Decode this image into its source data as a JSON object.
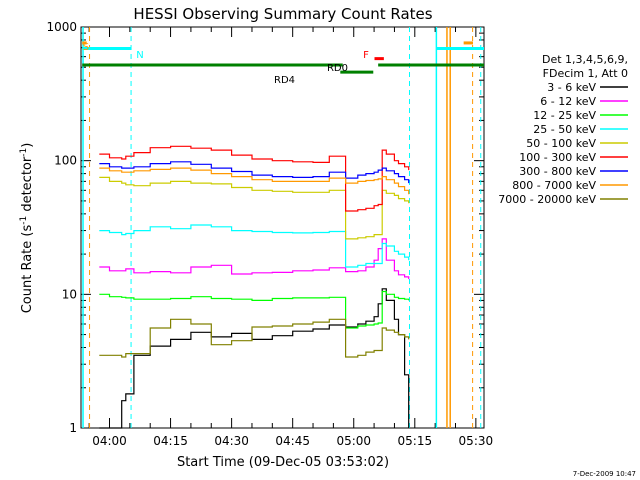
{
  "chart_data": {
    "type": "line",
    "title": "HESSI Observing Summary Count Rates",
    "xlabel": "Start Time (09-Dec-05 03:53:02)",
    "ylabel_main": "Count Rate (s",
    "ylabel_sup1": "-1",
    "ylabel_mid": " detector",
    "ylabel_sup2": "-1",
    "ylabel_end": ")",
    "timestamp": "7-Dec-2009 10:47",
    "yscale": "log",
    "ylim": [
      1,
      1000
    ],
    "xlim_minutes": [
      233,
      332
    ],
    "xticks": [
      {
        "label": "04:00",
        "minute": 240
      },
      {
        "label": "04:15",
        "minute": 255
      },
      {
        "label": "04:30",
        "minute": 270
      },
      {
        "label": "04:45",
        "minute": 285
      },
      {
        "label": "05:00",
        "minute": 300
      },
      {
        "label": "05:15",
        "minute": 315
      },
      {
        "label": "05:30",
        "minute": 330
      }
    ],
    "yticks": [
      {
        "label": "1",
        "value": 1
      },
      {
        "label": "10",
        "value": 10
      },
      {
        "label": "100",
        "value": 100
      },
      {
        "label": "1000",
        "value": 1000
      }
    ],
    "legend_header": [
      "Det 1,3,4,5,6,9,",
      "FDecim 1, Att 0"
    ],
    "legend_position": "right",
    "series": [
      {
        "name": "3 - 6 keV",
        "color": "#000000",
        "x": [
          237.5,
          240,
          243,
          244,
          246,
          250,
          255,
          260,
          265,
          270,
          275,
          280,
          285,
          290,
          294,
          298,
          301,
          303,
          305,
          306,
          307,
          308,
          310,
          311,
          312.5,
          313.5
        ],
        "y": [
          1,
          1,
          1.6,
          1.8,
          3.5,
          4.1,
          4.6,
          5.2,
          4.8,
          5.1,
          4.6,
          4.9,
          5.3,
          5.5,
          5.9,
          5.7,
          6.0,
          6.3,
          6.8,
          8.5,
          11,
          9,
          6.5,
          5.0,
          2.5,
          1
        ]
      },
      {
        "name": "6 - 12 keV",
        "color": "#ff00ff",
        "x": [
          237.5,
          240,
          243,
          244,
          246,
          250,
          255,
          260,
          265,
          270,
          275,
          280,
          285,
          290,
          294,
          298,
          301,
          303,
          305,
          306,
          307,
          308,
          310,
          311,
          312.5,
          313.5
        ],
        "y": [
          16,
          15,
          15,
          15.5,
          14.5,
          14.8,
          14.5,
          16,
          16.5,
          14.2,
          14.5,
          14.6,
          15,
          15.2,
          15.8,
          14.8,
          15,
          16,
          18,
          22,
          26,
          18,
          15,
          14,
          13.5,
          13
        ]
      },
      {
        "name": "12 - 25 keV",
        "color": "#00ff00",
        "x": [
          237.5,
          240,
          243,
          244,
          246,
          250,
          255,
          260,
          265,
          270,
          275,
          280,
          285,
          290,
          294,
          298,
          301,
          303,
          305,
          306,
          307,
          308,
          310,
          311,
          312.5,
          313.5
        ],
        "y": [
          10,
          9.6,
          9.5,
          9.4,
          9.2,
          9.2,
          9.3,
          9.6,
          9.3,
          9.2,
          9.0,
          9.3,
          9.4,
          9.4,
          9.5,
          5.6,
          5.8,
          5.9,
          6.0,
          6.1,
          10.5,
          10,
          9.5,
          9.3,
          9.2,
          9.0
        ]
      },
      {
        "name": "25 - 50 keV",
        "color": "#00ffff",
        "x": [
          237.5,
          240,
          243,
          244,
          246,
          250,
          255,
          260,
          265,
          270,
          275,
          280,
          285,
          290,
          294,
          298,
          301,
          303,
          305,
          306,
          307,
          308,
          310,
          311,
          312.5,
          313.5
        ],
        "y": [
          30,
          29,
          28,
          28.5,
          30,
          32,
          31,
          33,
          32,
          30,
          29.5,
          29,
          28.8,
          29,
          29.5,
          16,
          16.5,
          17,
          17,
          17,
          24,
          23,
          21,
          20,
          19,
          18
        ]
      },
      {
        "name": "50 - 100 keV",
        "color": "#cccc00",
        "x": [
          237.5,
          240,
          243,
          244,
          246,
          250,
          255,
          260,
          265,
          270,
          275,
          280,
          285,
          290,
          294,
          298,
          301,
          303,
          305,
          306,
          307,
          308,
          310,
          311,
          312.5,
          313.5
        ],
        "y": [
          75,
          70,
          68,
          66,
          65,
          68,
          70,
          68,
          67,
          63,
          60,
          59,
          58,
          58,
          60,
          26,
          26.5,
          27,
          28,
          28,
          60,
          57,
          55,
          52,
          50,
          48
        ]
      },
      {
        "name": "100 - 300 keV",
        "color": "#ff0000",
        "x": [
          237.5,
          240,
          243,
          244,
          246,
          250,
          255,
          260,
          265,
          270,
          275,
          280,
          285,
          290,
          294,
          298,
          301,
          303,
          305,
          306,
          307,
          308,
          310,
          311,
          312.5,
          313.5
        ],
        "y": [
          112,
          105,
          103,
          108,
          115,
          125,
          128,
          124,
          120,
          110,
          103,
          100,
          98,
          97,
          108,
          42,
          43,
          44,
          46,
          47,
          120,
          112,
          100,
          95,
          90,
          85
        ]
      },
      {
        "name": "300 - 800 keV",
        "color": "#0000ff",
        "x": [
          237.5,
          240,
          243,
          244,
          246,
          250,
          255,
          260,
          265,
          270,
          275,
          280,
          285,
          290,
          294,
          298,
          301,
          303,
          305,
          306,
          307,
          308,
          310,
          311,
          312.5,
          313.5
        ],
        "y": [
          95,
          90,
          88,
          88,
          90,
          95,
          98,
          94,
          88,
          83,
          78,
          76,
          75,
          76,
          82,
          74,
          78,
          80,
          82,
          85,
          88,
          84,
          80,
          76,
          72,
          68
        ]
      },
      {
        "name": "800 - 7000 keV",
        "color": "#ff9900",
        "x": [
          237.5,
          240,
          243,
          244,
          246,
          250,
          255,
          260,
          265,
          270,
          275,
          280,
          285,
          290,
          294,
          298,
          301,
          303,
          305,
          306,
          307,
          308,
          310,
          311,
          312.5,
          313.5
        ],
        "y": [
          88,
          84,
          82,
          82,
          84,
          86,
          88,
          85,
          80,
          76,
          72,
          70,
          70,
          70,
          74,
          68,
          70,
          71,
          72,
          73,
          76,
          72,
          68,
          64,
          60,
          56
        ]
      },
      {
        "name": "7000 - 20000 keV",
        "color": "#808000",
        "x": [
          237.5,
          240,
          243,
          244,
          246,
          250,
          255,
          260,
          265,
          270,
          275,
          280,
          285,
          290,
          294,
          298,
          301,
          303,
          305,
          306,
          307,
          308,
          310,
          311,
          312.5,
          313.5
        ],
        "y": [
          3.5,
          3.5,
          3.4,
          3.6,
          3.6,
          5.6,
          6.5,
          6.0,
          4.2,
          4.5,
          5.7,
          5.8,
          6.0,
          6.2,
          6.5,
          3.4,
          3.5,
          3.7,
          3.8,
          3.8,
          5.6,
          5.4,
          5.2,
          5.0,
          4.8,
          4.6
        ]
      }
    ],
    "annotations": [
      {
        "label": "S",
        "color": "#ff9900",
        "minute": 234.2,
        "value": 720
      },
      {
        "label": "N",
        "color": "#00ffff",
        "minute": 247.5,
        "value": 630
      },
      {
        "label": "RD0",
        "color": "#000000",
        "minute": 296,
        "value": 500
      },
      {
        "label": "RD4",
        "color": "#000000",
        "minute": 283,
        "value": 410
      },
      {
        "label": "F",
        "color": "#ff0000",
        "minute": 303,
        "value": 630
      }
    ],
    "bars": [
      {
        "id": "cyan-left",
        "color": "#00ffff",
        "y_value": 690,
        "x_from": 233.3,
        "x_to": 245.3
      },
      {
        "id": "cyan-right",
        "color": "#00ffff",
        "y_value": 690,
        "x_from": 320.3,
        "x_to": 332
      },
      {
        "id": "orange-left",
        "color": "#ff9900",
        "y_value": 760,
        "x_from": 233.3,
        "x_to": 234.4
      },
      {
        "id": "orange-right",
        "color": "#ff9900",
        "y_value": 760,
        "x_from": 327,
        "x_to": 329.3
      },
      {
        "id": "green-main",
        "color": "#008000",
        "y_value": 520,
        "x_from": 233.3,
        "x_to": 297.3
      },
      {
        "id": "green-mid",
        "color": "#008000",
        "y_value": 460,
        "x_from": 296.7,
        "x_to": 304.8
      },
      {
        "id": "green-right",
        "color": "#008000",
        "y_value": 520,
        "x_from": 306,
        "x_to": 332
      },
      {
        "id": "red-flare",
        "color": "#ff0000",
        "y_value": 580,
        "x_from": 305.1,
        "x_to": 307.4
      }
    ],
    "vlines": [
      {
        "id": "cyan-solid-1",
        "color": "#00ffff",
        "dash": "solid",
        "minute": 233.5
      },
      {
        "id": "orange-dash-1",
        "color": "#ff9900",
        "dash": "dashed",
        "minute": 235.1
      },
      {
        "id": "cyan-dash-1",
        "color": "#00ffff",
        "dash": "dashed",
        "minute": 245.3
      },
      {
        "id": "cyan-solid-2",
        "color": "#00ffff",
        "dash": "solid",
        "minute": 320.3
      },
      {
        "id": "cyan-dash-2",
        "color": "#00ffff",
        "dash": "dashed",
        "minute": 313.7
      },
      {
        "id": "orange-solid-1",
        "color": "#ff9900",
        "dash": "solid",
        "minute": 322.9
      },
      {
        "id": "orange-solid-2",
        "color": "#ff9900",
        "dash": "solid",
        "minute": 323.7
      },
      {
        "id": "orange-dash-2",
        "color": "#ff9900",
        "dash": "dashed",
        "minute": 329.2
      },
      {
        "id": "cyan-dash-3",
        "color": "#00ffff",
        "dash": "dashed",
        "minute": 331.2
      }
    ]
  }
}
